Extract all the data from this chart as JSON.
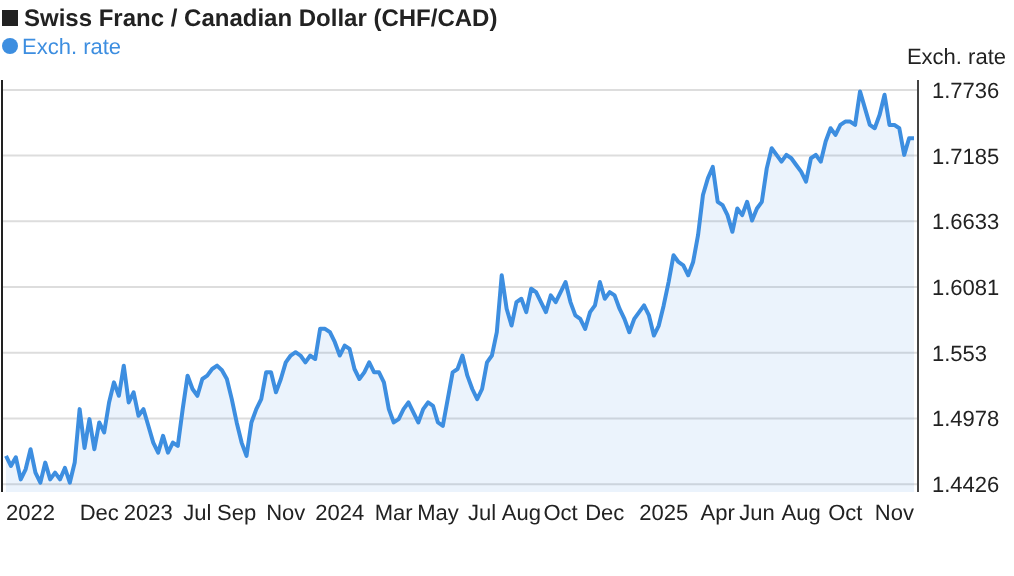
{
  "chart_data": {
    "type": "area",
    "title": "Swiss Franc / Canadian Dollar (CHF/CAD)",
    "ylabel": "Exch. rate",
    "legend": "top left",
    "grid": "y",
    "ylim": [
      1.436,
      1.782
    ],
    "yticks": [
      1.4426,
      1.4978,
      1.553,
      1.6081,
      1.6633,
      1.7185,
      1.7736
    ],
    "categories": [
      null,
      null,
      null,
      null,
      null,
      "2022",
      null,
      null,
      null,
      null,
      null,
      null,
      null,
      null,
      null,
      null,
      null,
      null,
      null,
      "Dec",
      null,
      null,
      null,
      null,
      null,
      null,
      null,
      null,
      null,
      "2023",
      null,
      null,
      null,
      null,
      null,
      null,
      null,
      null,
      null,
      "Jul",
      null,
      null,
      null,
      null,
      null,
      null,
      null,
      "Sep",
      null,
      null,
      null,
      null,
      null,
      null,
      null,
      null,
      null,
      "Nov",
      null,
      null,
      null,
      null,
      null,
      null,
      null,
      null,
      null,
      null,
      "2024",
      null,
      null,
      null,
      null,
      null,
      null,
      null,
      null,
      null,
      null,
      "Mar",
      null,
      null,
      null,
      null,
      null,
      null,
      null,
      null,
      "May",
      null,
      null,
      null,
      null,
      null,
      null,
      null,
      null,
      "Jul",
      null,
      null,
      null,
      null,
      null,
      null,
      null,
      "Aug",
      null,
      null,
      null,
      null,
      null,
      null,
      null,
      "Oct",
      null,
      null,
      null,
      null,
      null,
      null,
      null,
      null,
      "Dec",
      null,
      null,
      null,
      null,
      null,
      null,
      null,
      null,
      null,
      null,
      null,
      "2025",
      null,
      null,
      null,
      null,
      null,
      null,
      null,
      null,
      null,
      null,
      "Apr",
      null,
      null,
      null,
      null,
      null,
      null,
      null,
      "Jun",
      null,
      null,
      null,
      null,
      null,
      null,
      null,
      null,
      "Aug",
      null,
      null,
      null,
      null,
      null,
      null,
      null,
      null,
      "Oct",
      null,
      null,
      null,
      null,
      null,
      null,
      null,
      null,
      null,
      "Nov",
      null,
      null,
      null,
      null
    ],
    "series": [
      {
        "name": "Exch. rate",
        "color": "#3d8ee0",
        "values": [
          1.4663,
          1.4579,
          1.4652,
          1.4466,
          1.4551,
          1.4719,
          1.4523,
          1.4438,
          1.4607,
          1.4466,
          1.4523,
          1.4466,
          1.4562,
          1.4438,
          1.4607,
          1.5056,
          1.473,
          1.4972,
          1.4719,
          1.4944,
          1.486,
          1.5112,
          1.5281,
          1.5168,
          1.5421,
          1.5112,
          1.5197,
          1.5,
          1.5056,
          1.4916,
          1.4775,
          1.4691,
          1.4831,
          1.4691,
          1.4775,
          1.4747,
          1.5056,
          1.5337,
          1.5225,
          1.5168,
          1.5309,
          1.5337,
          1.5393,
          1.5421,
          1.5382,
          1.5309,
          1.514,
          1.4944,
          1.4775,
          1.4663,
          1.4944,
          1.5056,
          1.514,
          1.5365,
          1.5365,
          1.5197,
          1.5309,
          1.5449,
          1.5506,
          1.5534,
          1.5506,
          1.5449,
          1.5506,
          1.5477,
          1.573,
          1.573,
          1.5702,
          1.5618,
          1.5506,
          1.559,
          1.5562,
          1.5393,
          1.5309,
          1.5365,
          1.5449,
          1.5365,
          1.5365,
          1.5281,
          1.5056,
          1.4944,
          1.4972,
          1.5056,
          1.5112,
          1.5028,
          1.4944,
          1.5056,
          1.5112,
          1.5084,
          1.4944,
          1.4916,
          1.514,
          1.5365,
          1.5393,
          1.5506,
          1.5337,
          1.5225,
          1.514,
          1.5225,
          1.5449,
          1.5506,
          1.5702,
          1.618,
          1.5899,
          1.5758,
          1.5955,
          1.5983,
          1.5871,
          1.6067,
          1.6039,
          1.5955,
          1.5871,
          1.6011,
          1.5955,
          1.6039,
          1.6123,
          1.5955,
          1.5843,
          1.5814,
          1.573,
          1.5871,
          1.5927,
          1.6123,
          1.5983,
          1.6039,
          1.6011,
          1.5899,
          1.5814,
          1.5702,
          1.5814,
          1.5871,
          1.5927,
          1.5843,
          1.5674,
          1.5758,
          1.5927,
          1.6123,
          1.6348,
          1.6292,
          1.6264,
          1.618,
          1.6292,
          1.6517,
          1.6854,
          1.6994,
          1.709,
          1.6797,
          1.6769,
          1.6685,
          1.6545,
          1.6741,
          1.6685,
          1.6797,
          1.664,
          1.6741,
          1.6797,
          1.7078,
          1.7247,
          1.7191,
          1.7134,
          1.7191,
          1.7163,
          1.7106,
          1.705,
          1.6966,
          1.7163,
          1.7191,
          1.7134,
          1.7303,
          1.7415,
          1.7359,
          1.7443,
          1.7471,
          1.7471,
          1.7443,
          1.7724,
          1.7584,
          1.7443,
          1.7415,
          1.7528,
          1.7696,
          1.7443,
          1.7443,
          1.7415,
          1.7191,
          1.7331,
          1.7331
        ]
      }
    ]
  }
}
